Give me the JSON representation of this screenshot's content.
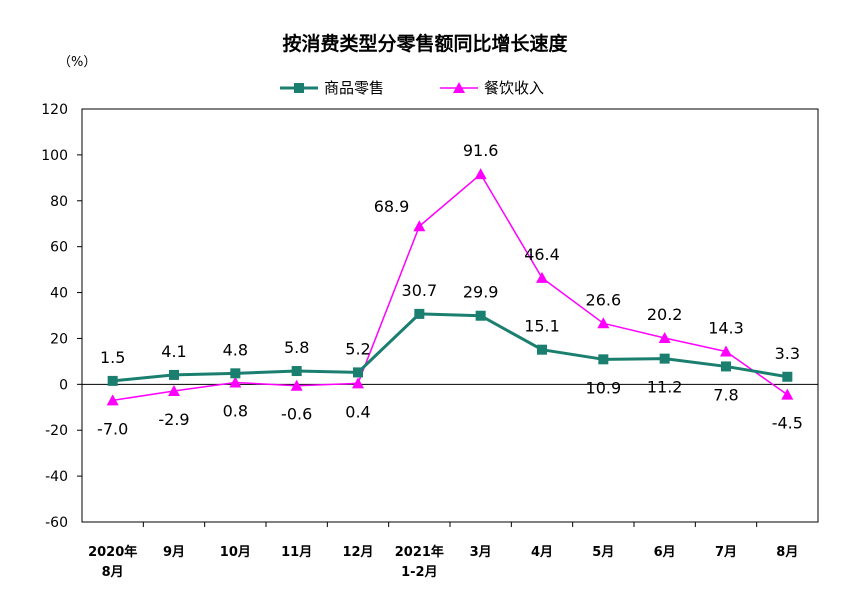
{
  "chart_data": {
    "type": "line",
    "title": "按消费类型分零售额同比增长速度",
    "unit_label": "（%）",
    "categories": [
      [
        "2020年",
        "8月"
      ],
      [
        "9月"
      ],
      [
        "10月"
      ],
      [
        "11月"
      ],
      [
        "12月"
      ],
      [
        "2021年",
        "1-2月"
      ],
      [
        "3月"
      ],
      [
        "4月"
      ],
      [
        "5月"
      ],
      [
        "6月"
      ],
      [
        "7月"
      ],
      [
        "8月"
      ]
    ],
    "ylim": [
      -60,
      120
    ],
    "yticks": [
      120,
      100,
      80,
      60,
      40,
      20,
      0,
      -20,
      -40,
      -60
    ],
    "legend_position": "top",
    "grid": false,
    "series": [
      {
        "name": "商品零售",
        "color": "#1b7f6f",
        "marker": "square",
        "values": [
          1.5,
          4.1,
          4.8,
          5.8,
          5.2,
          30.7,
          29.9,
          15.1,
          10.9,
          11.2,
          7.8,
          3.3
        ],
        "labels": [
          "1.5",
          "4.1",
          "4.8",
          "5.8",
          "5.2",
          "30.7",
          "29.9",
          "15.1",
          "10.9",
          "11.2",
          "7.8",
          "3.3"
        ]
      },
      {
        "name": "餐饮收入",
        "color": "#ff00ff",
        "marker": "triangle",
        "values": [
          -7.0,
          -2.9,
          0.8,
          -0.6,
          0.4,
          68.9,
          91.6,
          46.4,
          26.6,
          20.2,
          14.3,
          -4.5
        ],
        "labels": [
          "-7.0",
          "-2.9",
          "0.8",
          "-0.6",
          "0.4",
          "68.9",
          "91.6",
          "46.4",
          "26.6",
          "20.2",
          "14.3",
          "-4.5"
        ]
      }
    ]
  }
}
